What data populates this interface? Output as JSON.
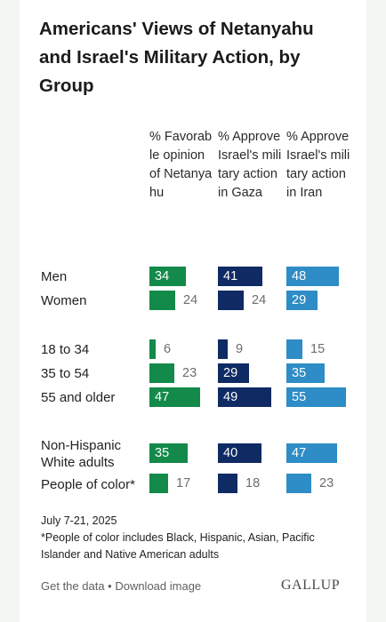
{
  "title": "Americans' Views of Netanyahu and Israel's Military Action, by Group",
  "chart_data": {
    "type": "bar",
    "title": "Americans' Views of Netanyahu and Israel's Military Action, by Group",
    "value_unit": "%",
    "series": [
      {
        "header": "% Favorable opinion of Netanyahu",
        "color": "#138a4a",
        "values": [
          34,
          24,
          6,
          23,
          47,
          35,
          17
        ]
      },
      {
        "header": "% Approve Israel's military action in Gaza",
        "color": "#102a63",
        "values": [
          41,
          24,
          9,
          29,
          49,
          40,
          18
        ]
      },
      {
        "header": "% Approve Israel's military action in Iran",
        "color": "#2e8cc6",
        "values": [
          48,
          29,
          15,
          35,
          55,
          47,
          23
        ]
      }
    ],
    "categories": [
      "Men",
      "Women",
      "18 to 34",
      "35 to 54",
      "55 and older",
      "Non-Hispanic White adults",
      "People of color*"
    ]
  },
  "notes": {
    "date": "July 7-21, 2025",
    "footnote": "*People of color includes Black, Hispanic, Asian, Pacific Islander and Native American adults"
  },
  "footer": {
    "links": "Get the data • Download image",
    "brand": "GALLUP"
  }
}
